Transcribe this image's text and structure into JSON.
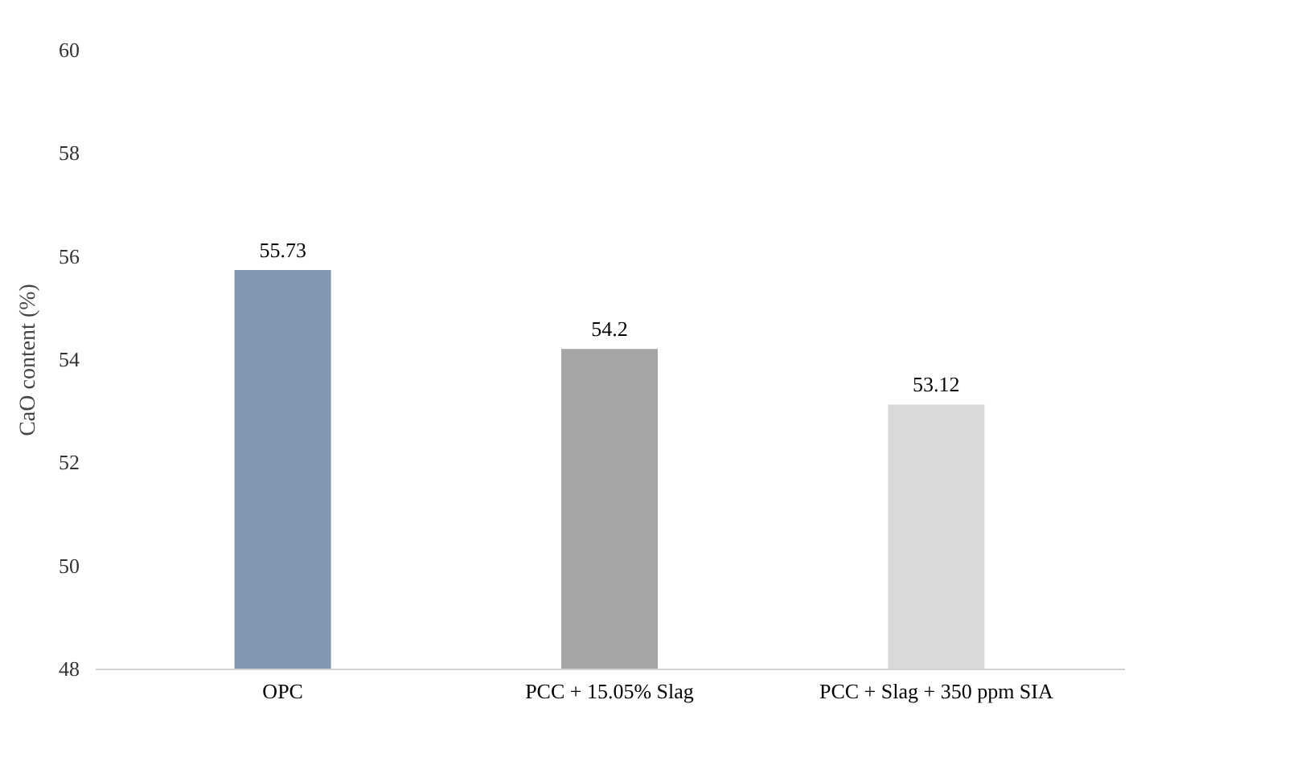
{
  "chart_data": {
    "type": "bar",
    "ylabel": "CaO content (%)",
    "categories": [
      "OPC",
      "PCC + 15.05% Slag",
      "PCC + Slag + 350 ppm SIA"
    ],
    "values": [
      55.73,
      54.2,
      53.12
    ],
    "colors": [
      "#8397b2",
      "#a5a5a5",
      "#d9d9d9"
    ],
    "ylim": [
      48,
      60
    ],
    "yticks": [
      48,
      50,
      52,
      54,
      56,
      58,
      60
    ],
    "data_labels": true,
    "grid": false
  }
}
